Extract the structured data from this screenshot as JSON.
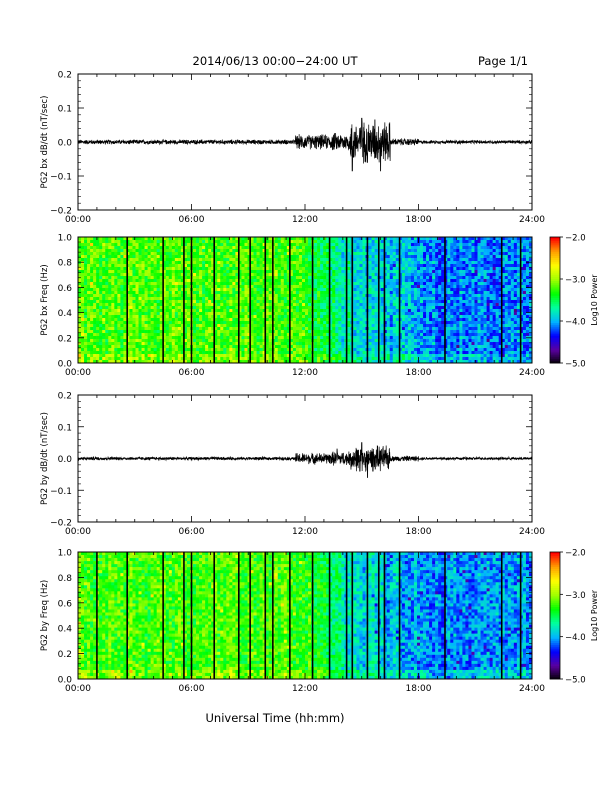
{
  "header": {
    "title": "2014/06/13  00:00−24:00 UT",
    "page": "Page 1/1"
  },
  "footer": {
    "xlabel": "Universal Time (hh:mm)"
  },
  "chart_data": [
    {
      "type": "line",
      "ylabel": "PG2 bx dB/dt (nT/sec)",
      "ylim": [
        -0.2,
        0.2
      ],
      "yticks": [
        "0.2",
        "0.1",
        "0.0",
        "−0.1",
        "−0.2"
      ],
      "xlim": [
        0,
        24
      ],
      "xtick_labels": [
        "00:00",
        "06:00",
        "12:00",
        "18:00",
        "24:00"
      ],
      "baseline": 0.0,
      "activity": [
        {
          "t": [
            0,
            12
          ],
          "amp": 0.008
        },
        {
          "t": [
            11.5,
            13.3
          ],
          "amp": 0.025
        },
        {
          "t": [
            13.3,
            14.7
          ],
          "amp": 0.03
        },
        {
          "t": [
            14.4,
            16.5
          ],
          "amp": 0.07
        },
        {
          "t": [
            16.5,
            18
          ],
          "amp": 0.012
        },
        {
          "t": [
            18,
            24
          ],
          "amp": 0.006
        }
      ],
      "peaks": [
        {
          "t": 14.5,
          "v": -0.085
        },
        {
          "t": 15.0,
          "v": 0.07
        },
        {
          "t": 15.7,
          "v": 0.065
        },
        {
          "t": 16.0,
          "v": -0.085
        },
        {
          "t": 15.3,
          "v": -0.06
        }
      ],
      "grid": false
    },
    {
      "type": "heatmap",
      "ylabel": "PG2 bx Freq (Hz)",
      "ylim": [
        0.0,
        1.0
      ],
      "yticks": [
        "1.0",
        "0.8",
        "0.6",
        "0.4",
        "0.2",
        "0.0"
      ],
      "xlim": [
        0,
        24
      ],
      "xtick_labels": [
        "00:00",
        "06:00",
        "12:00",
        "18:00",
        "24:00"
      ],
      "colorbar": {
        "label": "Log10 Power",
        "ticks": [
          "−2.0",
          "−3.0",
          "−4.0",
          "−5.0"
        ],
        "range": [
          -5.0,
          -2.0
        ],
        "colors": [
          "#000000",
          "#5a00a0",
          "#0000ff",
          "#00b4ff",
          "#00ffa0",
          "#00ff00",
          "#a0ff00",
          "#ffff00",
          "#ffa000",
          "#ff0000"
        ]
      },
      "gap_lines_hours": [
        2.6,
        4.5,
        5.6,
        6.0,
        7.2,
        8.5,
        9.1,
        9.9,
        10.3,
        11.2,
        12.4,
        13.3,
        14.2,
        14.5,
        15.3,
        15.9,
        16.2,
        17.0,
        19.4,
        22.4,
        23.4
      ]
    },
    {
      "type": "line",
      "ylabel": "PG2 by dB/dt (nT/sec)",
      "ylim": [
        -0.2,
        0.2
      ],
      "yticks": [
        "0.2",
        "0.1",
        "0.0",
        "−0.1",
        "−0.2"
      ],
      "xlim": [
        0,
        24
      ],
      "xtick_labels": [
        "00:00",
        "06:00",
        "12:00",
        "18:00",
        "24:00"
      ],
      "baseline": 0.0,
      "activity": [
        {
          "t": [
            0,
            12
          ],
          "amp": 0.006
        },
        {
          "t": [
            11.5,
            13.3
          ],
          "amp": 0.02
        },
        {
          "t": [
            13.3,
            14.7
          ],
          "amp": 0.025
        },
        {
          "t": [
            14.4,
            16.5
          ],
          "amp": 0.045
        },
        {
          "t": [
            16.5,
            18
          ],
          "amp": 0.01
        },
        {
          "t": [
            18,
            24
          ],
          "amp": 0.005
        }
      ],
      "peaks": [
        {
          "t": 15.3,
          "v": -0.06
        },
        {
          "t": 15.0,
          "v": 0.05
        },
        {
          "t": 13.7,
          "v": 0.03
        },
        {
          "t": 14.9,
          "v": -0.04
        }
      ],
      "grid": false
    },
    {
      "type": "heatmap",
      "ylabel": "PG2 by Freq (Hz)",
      "ylim": [
        0.0,
        1.0
      ],
      "yticks": [
        "1.0",
        "0.8",
        "0.6",
        "0.4",
        "0.2",
        "0.0"
      ],
      "xlim": [
        0,
        24
      ],
      "xtick_labels": [
        "00:00",
        "06:00",
        "12:00",
        "18:00",
        "24:00"
      ],
      "colorbar": {
        "label": "Log10 Power",
        "ticks": [
          "−2.0",
          "−3.0",
          "−4.0",
          "−5.0"
        ],
        "range": [
          -5.0,
          -2.0
        ],
        "colors": [
          "#000000",
          "#5a00a0",
          "#0000ff",
          "#00b4ff",
          "#00ffa0",
          "#00ff00",
          "#a0ff00",
          "#ffff00",
          "#ffa000",
          "#ff0000"
        ]
      },
      "gap_lines_hours": [
        1.0,
        2.6,
        4.5,
        5.6,
        6.0,
        7.2,
        8.5,
        9.1,
        9.9,
        10.3,
        11.2,
        12.4,
        13.3,
        14.2,
        14.5,
        15.3,
        15.9,
        16.2,
        17.0,
        19.4,
        22.4,
        23.4
      ]
    }
  ]
}
